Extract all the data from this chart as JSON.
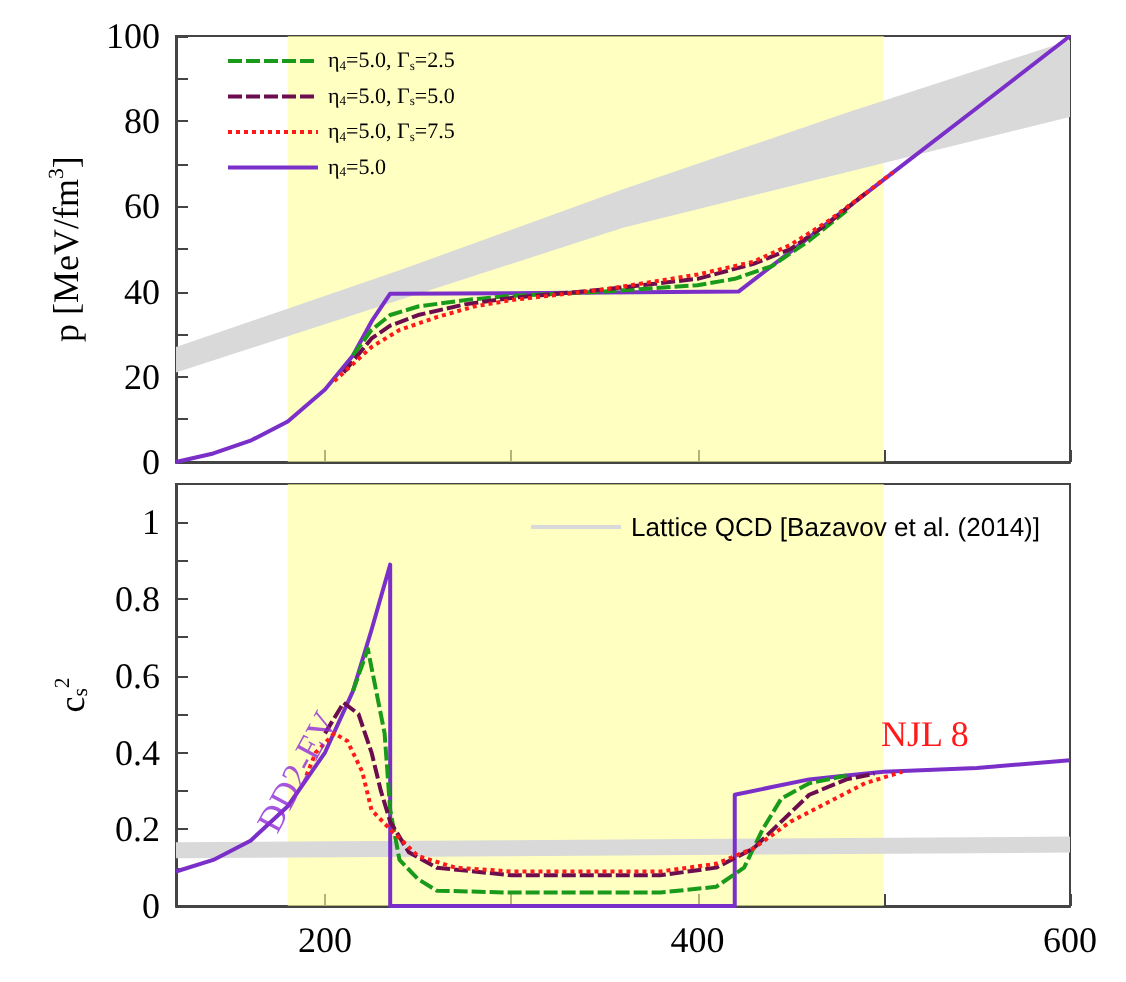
{
  "chart_data": [
    {
      "type": "line",
      "ylabel": "p [MeV/fm$^{3}$]",
      "xlim": [
        120,
        600
      ],
      "xticks": [
        {
          "value": 200,
          "label": null
        },
        {
          "value": 300,
          "label": null
        },
        {
          "value": 400,
          "label": null
        },
        {
          "value": 500,
          "label": null
        },
        {
          "value": 600,
          "label": null
        }
      ],
      "ylim": [
        0,
        100
      ],
      "yticks": [
        0,
        {
          "value": 10,
          "label": null
        },
        20,
        {
          "value": 30,
          "label": null
        },
        40,
        {
          "value": 50,
          "label": null
        },
        60,
        {
          "value": 70,
          "label": null
        },
        80,
        {
          "value": 90,
          "label": null
        },
        100
      ],
      "tick_labels": "y",
      "grid": false,
      "legend": "top left",
      "bands": [
        {
          "axis": "x",
          "from": 180,
          "to": 500,
          "color": "#ffff99"
        }
      ],
      "series": [
        {
          "name": "η$_{4}$=5.0, Γ$_{s}$=2.5",
          "color": "#1a9a1a",
          "line_style": "dashed",
          "x": [
            215,
            225,
            235,
            250,
            275,
            300,
            350,
            400,
            420,
            440,
            460,
            480
          ],
          "values": [
            25,
            31,
            34.5,
            36.5,
            38,
            39,
            40,
            41.5,
            43,
            46,
            52,
            59
          ]
        },
        {
          "name": "η$_{4}$=5.0, Γ$_{s}$=5.0",
          "color": "#6b0d4e",
          "line_style": "dashed",
          "x": [
            210,
            225,
            235,
            250,
            275,
            300,
            350,
            400,
            430,
            450,
            470,
            490
          ],
          "values": [
            21,
            29,
            32,
            34.5,
            37,
            38.5,
            40.5,
            43,
            46.5,
            50,
            56,
            63
          ]
        },
        {
          "name": "η$_{4}$=5.0, Γ$_{s}$=7.5",
          "color": "#ff1a1a",
          "line_style": "dotted",
          "x": [
            205,
            225,
            240,
            260,
            280,
            300,
            350,
            400,
            430,
            450,
            470,
            490,
            505
          ],
          "values": [
            19,
            27,
            31,
            34,
            36.5,
            38,
            40.5,
            44,
            47,
            51,
            56.5,
            63,
            68
          ]
        },
        {
          "name": "η$_{4}$=5.0",
          "color": "#7b2fc9",
          "line_style": "solid",
          "x": [
            120,
            140,
            160,
            180,
            200,
            215,
            225,
            235,
            300,
            350,
            422,
            450,
            500,
            550,
            600
          ],
          "values": [
            0,
            2,
            5,
            9.5,
            17,
            25,
            33,
            39.5,
            39.6,
            39.8,
            40,
            49.4,
            66.3,
            83.1,
            100
          ]
        },
        {
          "color": "#d9d9d9",
          "x": [
            120,
            240,
            360,
            480,
            600
          ],
          "values": [
            null,
            null,
            null,
            null,
            null
          ],
          "lower": [
            21,
            38,
            55,
            68,
            81
          ],
          "upper": [
            27,
            45,
            64,
            82,
            99
          ]
        }
      ]
    },
    {
      "type": "line",
      "ylabel": "c$_{s}$$^{2}$",
      "xlim": [
        120,
        600
      ],
      "xticks": [
        200,
        {
          "value": 300,
          "label": null
        },
        400,
        {
          "value": 500,
          "label": null
        },
        600
      ],
      "ylim": [
        0,
        1.1
      ],
      "yticks": [
        0,
        {
          "value": 0.1,
          "label": null
        },
        0.2,
        {
          "value": 0.3,
          "label": null
        },
        0.4,
        {
          "value": 0.5,
          "label": null
        },
        0.6,
        {
          "value": 0.7,
          "label": null
        },
        0.8,
        {
          "value": 0.9,
          "label": null
        },
        1
      ],
      "grid": false,
      "legend": "top right",
      "bands": [
        {
          "axis": "x",
          "from": 180,
          "to": 500,
          "color": "#ffff99"
        }
      ],
      "annotations": [
        {
          "text": "DD2-EV",
          "x": 185,
          "y": 0.35
        },
        "NJL 8"
      ],
      "series": [
        {
          "color": "#1a9a1a",
          "line_style": "dashed",
          "x": [
            215,
            223,
            232,
            235,
            240,
            250,
            260,
            300,
            380,
            410,
            425,
            435,
            445,
            460,
            480
          ],
          "values": [
            0.56,
            0.67,
            0.45,
            0.25,
            0.12,
            0.07,
            0.04,
            0.035,
            0.035,
            0.05,
            0.1,
            0.2,
            0.28,
            0.32,
            0.34
          ]
        },
        {
          "color": "#6b0d4e",
          "line_style": "dashed",
          "x": [
            200,
            210,
            218,
            225,
            230,
            235,
            245,
            260,
            300,
            380,
            410,
            430,
            445,
            460,
            480,
            495
          ],
          "values": [
            0.45,
            0.53,
            0.5,
            0.4,
            0.3,
            0.22,
            0.14,
            0.1,
            0.08,
            0.08,
            0.1,
            0.15,
            0.22,
            0.29,
            0.33,
            0.345
          ]
        },
        {
          "color": "#ff1a1a",
          "line_style": "dotted",
          "x": [
            190,
            195,
            205,
            212,
            220,
            225,
            235,
            250,
            270,
            300,
            380,
            410,
            430,
            450,
            470,
            490,
            510
          ],
          "values": [
            0.34,
            0.4,
            0.45,
            0.43,
            0.35,
            0.25,
            0.2,
            0.13,
            0.1,
            0.09,
            0.09,
            0.11,
            0.15,
            0.22,
            0.27,
            0.32,
            0.35
          ]
        },
        {
          "color": "#7b2fc9",
          "line_style": "solid",
          "x": [
            120,
            140,
            160,
            180,
            200,
            215,
            225,
            235,
            235,
            420,
            420,
            440,
            460,
            480,
            500,
            550,
            600
          ],
          "values": [
            0.09,
            0.12,
            0.17,
            0.26,
            0.4,
            0.56,
            0.72,
            0.89,
            0,
            0,
            0.29,
            0.31,
            0.33,
            0.34,
            0.35,
            0.36,
            0.38
          ]
        },
        {
          "name": "Lattice QCD [Bazavov et al. (2014)]",
          "color": "#d9d9d9",
          "line_style": "solid",
          "x": [
            120,
            600
          ],
          "values": [
            0.145,
            0.16
          ]
        }
      ]
    }
  ]
}
